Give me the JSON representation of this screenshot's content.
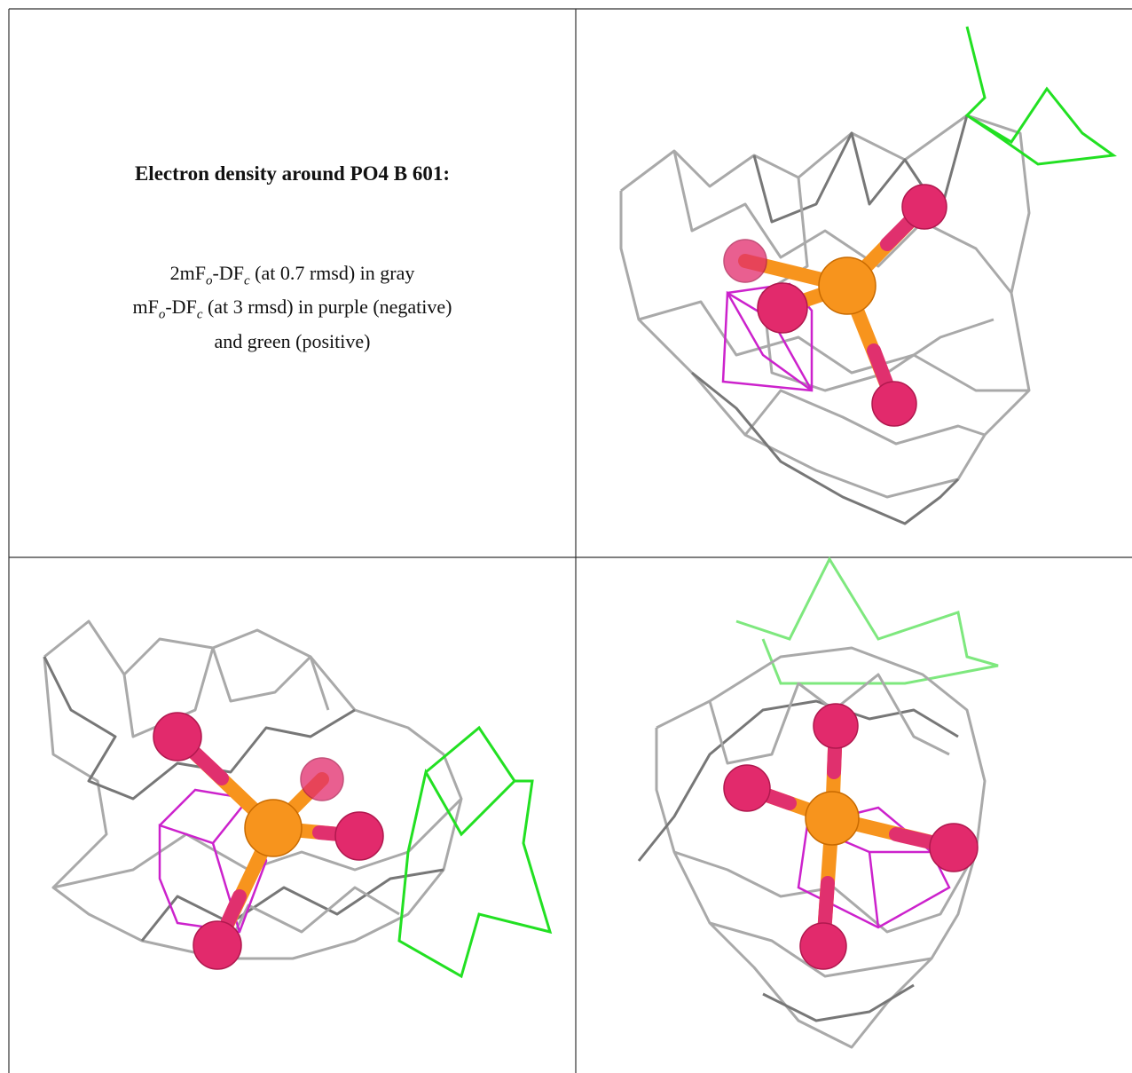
{
  "title": "Electron density around PO4 B 601:",
  "legend_lines": [
    [
      "2mF",
      "o",
      "-DF",
      "c",
      " (at 0.7 rmsd) in gray"
    ],
    [
      "mF",
      "o",
      "-DF",
      "c",
      " (at 3 rmsd) in purple (negative)"
    ],
    [
      "and green (positive)"
    ]
  ]
}
